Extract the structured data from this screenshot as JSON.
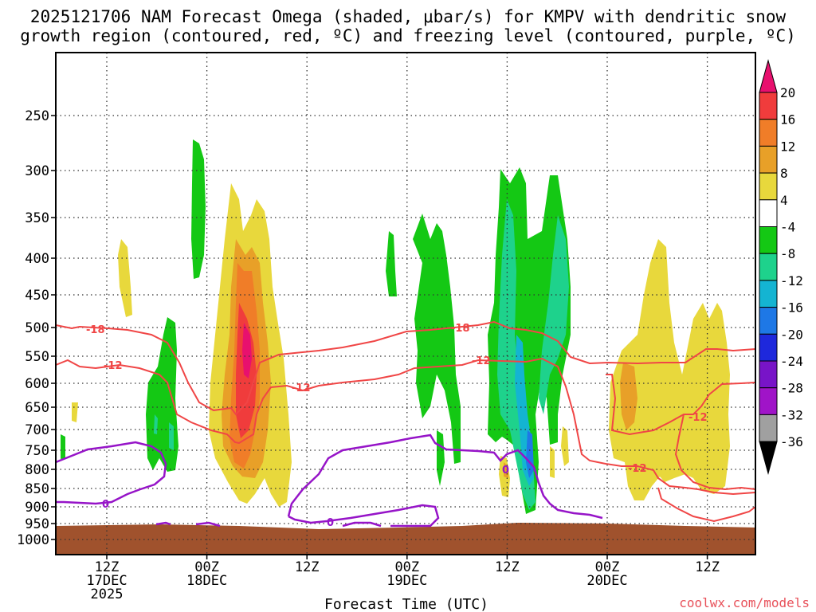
{
  "chart_data": {
    "type": "heatmap",
    "title_lines": [
      "2025121706 NAM Forecast Omega (shaded, μbar/s) for KMPV with dendritic snow",
      "growth region (contoured, red, ºC) and freezing level (contoured, purple, ºC)"
    ],
    "xlabel": "Forecast Time (UTC)",
    "ylabel": "",
    "credit": "coolwx.com/models",
    "x_ticks": [
      {
        "hour": 0,
        "lines": [
          "12Z",
          "17DEC",
          "2025"
        ]
      },
      {
        "hour": 12,
        "lines": [
          "00Z",
          "18DEC"
        ]
      },
      {
        "hour": 24,
        "lines": [
          "12Z"
        ]
      },
      {
        "hour": 36,
        "lines": [
          "00Z",
          "19DEC"
        ]
      },
      {
        "hour": 48,
        "lines": [
          "12Z"
        ]
      },
      {
        "hour": 60,
        "lines": [
          "00Z",
          "20DEC"
        ]
      },
      {
        "hour": 72,
        "lines": [
          "12Z"
        ]
      }
    ],
    "y_ticks": [
      250,
      300,
      350,
      400,
      450,
      500,
      550,
      600,
      650,
      700,
      750,
      800,
      850,
      900,
      950,
      1000
    ],
    "ylim_hpa": [
      1010,
      200
    ],
    "xlim_hours": [
      -6,
      78
    ],
    "colorbar": {
      "labels": [
        "20",
        "16",
        "12",
        "8",
        "4",
        "-4",
        "-8",
        "-12",
        "-16",
        "-20",
        "-24",
        "-28",
        "-32",
        "-36"
      ],
      "colors": [
        "#e8106e",
        "#f03c3c",
        "#f07d28",
        "#e8a028",
        "#e8d83c",
        "#ffffff",
        "#14c814",
        "#1ed28c",
        "#14b4d2",
        "#1e78e6",
        "#1e28dc",
        "#7814c8",
        "#a014c8",
        "#a0a0a0",
        "#000000"
      ]
    },
    "contours": {
      "red_dendritic": [
        {
          "level": "-18",
          "color": "#f04646"
        },
        {
          "level": "-12",
          "color": "#f04646"
        }
      ],
      "purple_freezing": [
        {
          "level": "0",
          "color": "#9614c8"
        }
      ]
    },
    "label_texts": {
      "m18": "-18",
      "m12": "-12",
      "zero": "0"
    },
    "ground_color": "#a0522d"
  }
}
